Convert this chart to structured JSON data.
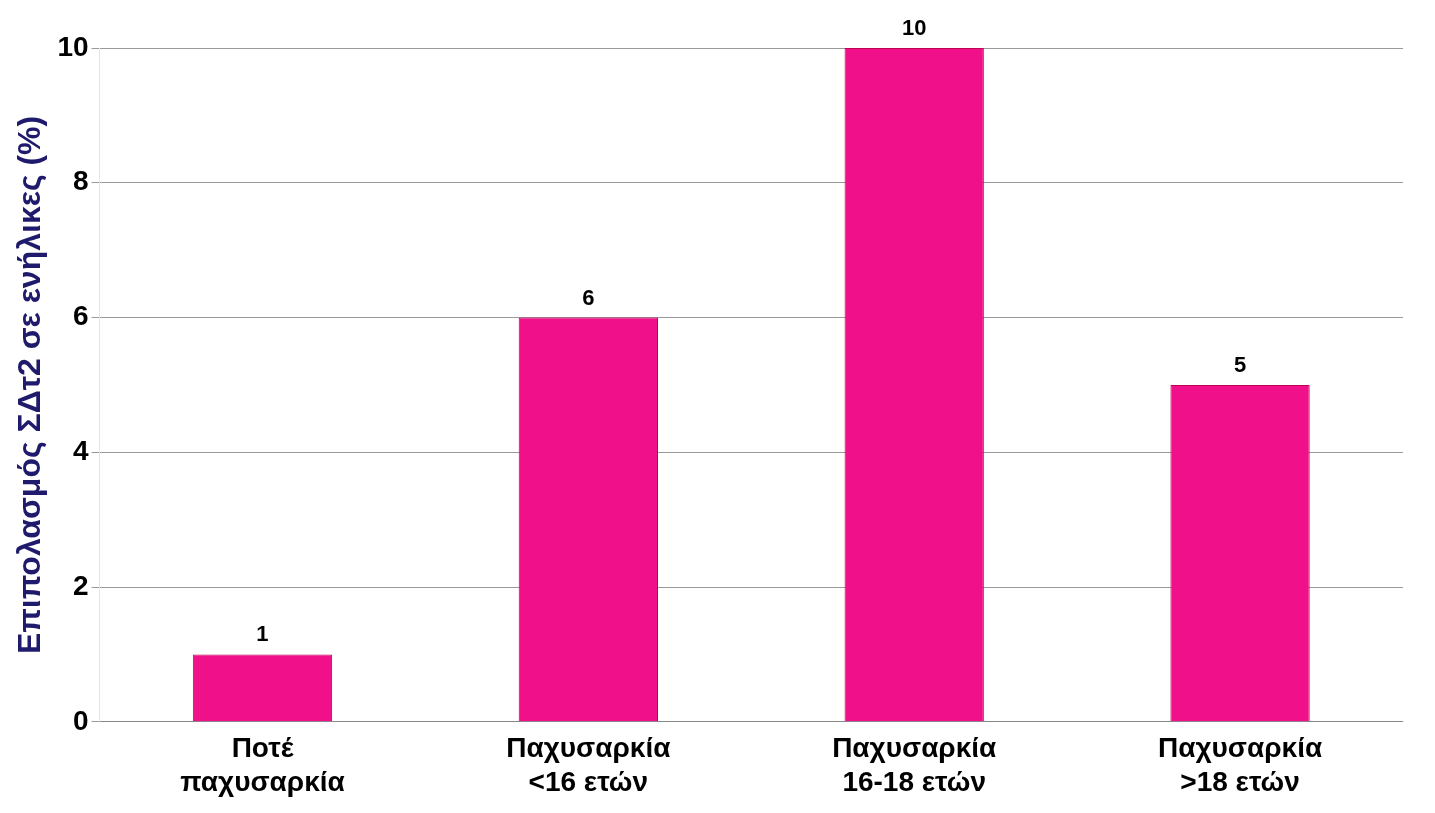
{
  "chart_data": {
    "type": "bar",
    "ylabel": "Επιπολασμός ΣΔτ2 σε ενήλικες (%)",
    "categories": [
      "Ποτέ παχυσαρκία",
      "Παχυσαρκία <16 ετών",
      "Παχυσαρκία 16-18 ετών",
      "Παχυσαρκία >18 ετών"
    ],
    "values": [
      1,
      6,
      10,
      5
    ],
    "color": "#f0108a",
    "ylim": [
      0,
      10
    ],
    "yticks": [
      0,
      2,
      4,
      6,
      8,
      10
    ],
    "grid": "y",
    "data_labels": true,
    "legend": false
  }
}
